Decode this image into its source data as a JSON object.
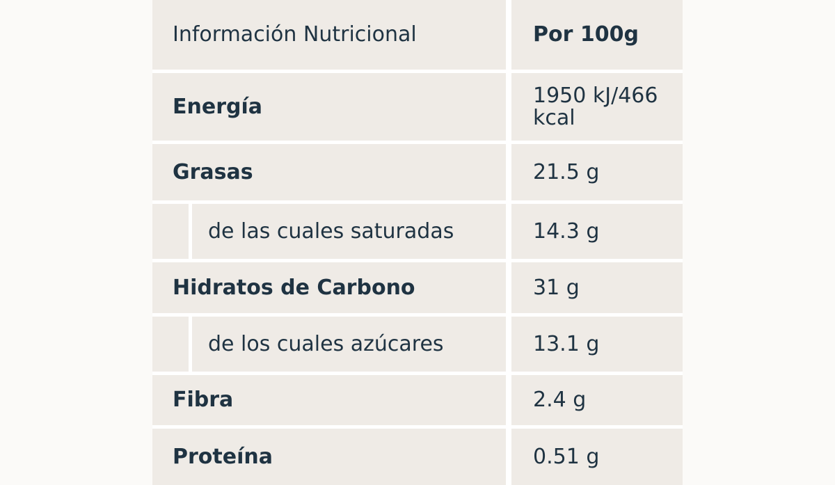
{
  "table": {
    "header": {
      "name": "Información Nutricional",
      "value": "Por 100g"
    },
    "rows": [
      {
        "name": "Energía",
        "value_line1": "1950 kJ/466",
        "value_line2": "kcal"
      },
      {
        "name": "Grasas",
        "value": "21.5 g"
      },
      {
        "name": "de las cuales saturadas",
        "value": "14.3 g"
      },
      {
        "name": "Hidratos de Carbono",
        "value": "31 g"
      },
      {
        "name": "de los cuales azúcares",
        "value": "13.1 g"
      },
      {
        "name": "Fibra",
        "value": "2.4 g"
      },
      {
        "name": "Proteína",
        "value": "0.51 g"
      }
    ]
  },
  "colors": {
    "cell_background": "#efebe6",
    "grid_lines": "#ffffff",
    "text": "#1f3342"
  }
}
